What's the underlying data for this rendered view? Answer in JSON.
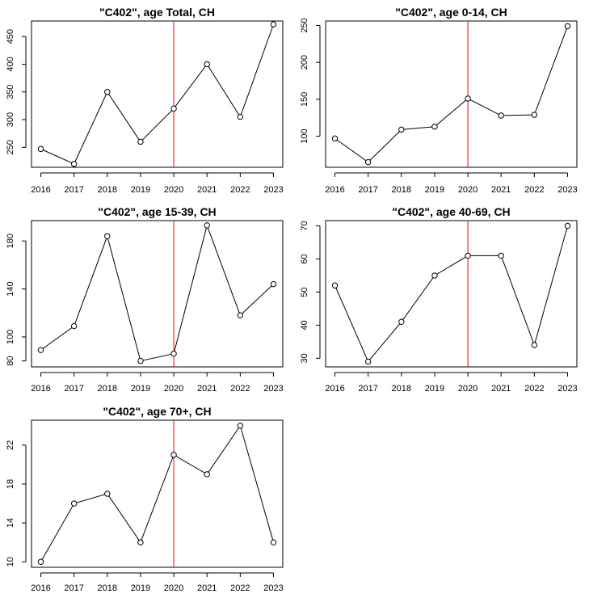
{
  "chart_data": [
    {
      "type": "line",
      "title": "\"C402\", age Total, CH",
      "xlabel": "",
      "ylabel": "",
      "x": [
        2016,
        2017,
        2018,
        2019,
        2020,
        2021,
        2022,
        2023
      ],
      "x_ticks": [
        "2016",
        "2017",
        "2018",
        "2019",
        "2020",
        "2021",
        "2022",
        "2023"
      ],
      "values": [
        247,
        220,
        350,
        260,
        320,
        400,
        305,
        472
      ],
      "y_ticks": [
        250,
        300,
        350,
        400,
        450
      ],
      "ylim": [
        214,
        478
      ],
      "vline_x": 2020,
      "vline_color": "#ff0000",
      "grid": false
    },
    {
      "type": "line",
      "title": "\"C402\", age 0-14, CH",
      "xlabel": "",
      "ylabel": "",
      "x": [
        2016,
        2017,
        2018,
        2019,
        2020,
        2021,
        2022,
        2023
      ],
      "x_ticks": [
        "2016",
        "2017",
        "2018",
        "2019",
        "2020",
        "2021",
        "2022",
        "2023"
      ],
      "values": [
        97,
        65,
        109,
        113,
        151,
        128,
        129,
        249
      ],
      "y_ticks": [
        100,
        150,
        200,
        250
      ],
      "ylim": [
        58,
        256
      ],
      "vline_x": 2020,
      "vline_color": "#ff0000",
      "grid": false
    },
    {
      "type": "line",
      "title": "\"C402\", age 15-39, CH",
      "xlabel": "",
      "ylabel": "",
      "x": [
        2016,
        2017,
        2018,
        2019,
        2020,
        2021,
        2022,
        2023
      ],
      "x_ticks": [
        "2016",
        "2017",
        "2018",
        "2019",
        "2020",
        "2021",
        "2022",
        "2023"
      ],
      "values": [
        89,
        109,
        184,
        80,
        86,
        193,
        118,
        144
      ],
      "y_ticks": [
        80,
        100,
        140,
        180
      ],
      "ylim": [
        75,
        197
      ],
      "vline_x": 2020,
      "vline_color": "#ff0000",
      "grid": false
    },
    {
      "type": "line",
      "title": "\"C402\", age 40-69, CH",
      "xlabel": "",
      "ylabel": "",
      "x": [
        2016,
        2017,
        2018,
        2019,
        2020,
        2021,
        2022,
        2023
      ],
      "x_ticks": [
        "2016",
        "2017",
        "2018",
        "2019",
        "2020",
        "2021",
        "2022",
        "2023"
      ],
      "values": [
        52,
        29,
        41,
        55,
        61,
        61,
        34,
        70
      ],
      "y_ticks": [
        30,
        40,
        50,
        60,
        70
      ],
      "ylim": [
        27.4,
        71.6
      ],
      "vline_x": 2020,
      "vline_color": "#ff0000",
      "grid": false
    },
    {
      "type": "line",
      "title": "\"C402\", age 70+, CH",
      "xlabel": "",
      "ylabel": "",
      "x": [
        2016,
        2017,
        2018,
        2019,
        2020,
        2021,
        2022,
        2023
      ],
      "x_ticks": [
        "2016",
        "2017",
        "2018",
        "2019",
        "2020",
        "2021",
        "2022",
        "2023"
      ],
      "values": [
        10,
        16,
        17,
        12,
        21,
        19,
        24,
        12
      ],
      "y_ticks": [
        10,
        14,
        18,
        22
      ],
      "ylim": [
        9.44,
        24.56
      ],
      "vline_x": 2020,
      "vline_color": "#ff0000",
      "grid": false
    }
  ]
}
